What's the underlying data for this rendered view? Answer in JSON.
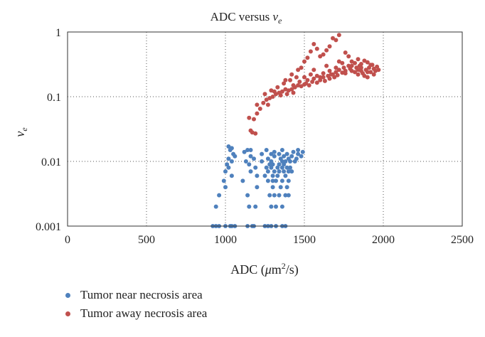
{
  "chart_data": {
    "type": "scatter",
    "title": "ADC versus ",
    "title_symbol": "v",
    "title_sub": "e",
    "xlabel_prefix": "ADC (",
    "xlabel_mu": "μ",
    "xlabel_m": "m",
    "xlabel_sup": "2",
    "xlabel_suffix": "/s)",
    "ylabel_symbol": "v",
    "ylabel_sub": "e",
    "xlim": [
      0,
      2500
    ],
    "ylim": [
      0.001,
      1
    ],
    "y_scale": "log",
    "x_ticks": [
      0,
      500,
      1000,
      1500,
      2000,
      2500
    ],
    "x_tick_labels": [
      "0",
      "500",
      "1000",
      "1500",
      "2000",
      "2500"
    ],
    "y_ticks": [
      0.001,
      0.01,
      0.1,
      1
    ],
    "y_tick_labels": [
      "0.001",
      "0.01",
      "0.1",
      "1"
    ],
    "grid": "dotted",
    "legend_position": "bottom-left",
    "series": [
      {
        "name": "Tumor near necrosis area",
        "color": "#4f81bd",
        "points": [
          [
            920,
            0.001
          ],
          [
            940,
            0.001
          ],
          [
            960,
            0.001
          ],
          [
            1000,
            0.001
          ],
          [
            1030,
            0.001
          ],
          [
            1040,
            0.001
          ],
          [
            1060,
            0.001
          ],
          [
            1140,
            0.001
          ],
          [
            1170,
            0.001
          ],
          [
            1180,
            0.001
          ],
          [
            1250,
            0.001
          ],
          [
            1270,
            0.001
          ],
          [
            1290,
            0.001
          ],
          [
            1320,
            0.001
          ],
          [
            1360,
            0.001
          ],
          [
            1380,
            0.001
          ],
          [
            940,
            0.002
          ],
          [
            1150,
            0.002
          ],
          [
            1190,
            0.002
          ],
          [
            1290,
            0.002
          ],
          [
            1320,
            0.002
          ],
          [
            1360,
            0.002
          ],
          [
            960,
            0.003
          ],
          [
            1140,
            0.003
          ],
          [
            1280,
            0.003
          ],
          [
            1310,
            0.003
          ],
          [
            1340,
            0.003
          ],
          [
            1380,
            0.003
          ],
          [
            1400,
            0.003
          ],
          [
            1000,
            0.004
          ],
          [
            1200,
            0.004
          ],
          [
            1300,
            0.004
          ],
          [
            1350,
            0.004
          ],
          [
            1390,
            0.004
          ],
          [
            990,
            0.005
          ],
          [
            1110,
            0.005
          ],
          [
            1270,
            0.005
          ],
          [
            1300,
            0.005
          ],
          [
            1320,
            0.005
          ],
          [
            1360,
            0.005
          ],
          [
            1400,
            0.005
          ],
          [
            1040,
            0.006
          ],
          [
            1200,
            0.006
          ],
          [
            1250,
            0.006
          ],
          [
            1300,
            0.006
          ],
          [
            1330,
            0.006
          ],
          [
            1380,
            0.006
          ],
          [
            1000,
            0.007
          ],
          [
            1160,
            0.007
          ],
          [
            1270,
            0.007
          ],
          [
            1310,
            0.007
          ],
          [
            1340,
            0.007
          ],
          [
            1370,
            0.007
          ],
          [
            1400,
            0.007
          ],
          [
            1420,
            0.007
          ],
          [
            1020,
            0.008
          ],
          [
            1190,
            0.008
          ],
          [
            1260,
            0.008
          ],
          [
            1290,
            0.008
          ],
          [
            1330,
            0.008
          ],
          [
            1360,
            0.008
          ],
          [
            1390,
            0.008
          ],
          [
            1410,
            0.008
          ],
          [
            1010,
            0.009
          ],
          [
            1150,
            0.009
          ],
          [
            1280,
            0.009
          ],
          [
            1300,
            0.009
          ],
          [
            1340,
            0.009
          ],
          [
            1370,
            0.009
          ],
          [
            1040,
            0.01
          ],
          [
            1130,
            0.01
          ],
          [
            1230,
            0.01
          ],
          [
            1290,
            0.01
          ],
          [
            1360,
            0.01
          ],
          [
            1380,
            0.01
          ],
          [
            1410,
            0.01
          ],
          [
            1440,
            0.01
          ],
          [
            1020,
            0.011
          ],
          [
            1180,
            0.011
          ],
          [
            1270,
            0.011
          ],
          [
            1350,
            0.011
          ],
          [
            1400,
            0.011
          ],
          [
            1450,
            0.011
          ],
          [
            1060,
            0.012
          ],
          [
            1160,
            0.012
          ],
          [
            1310,
            0.012
          ],
          [
            1370,
            0.012
          ],
          [
            1420,
            0.012
          ],
          [
            1480,
            0.012
          ],
          [
            1050,
            0.013
          ],
          [
            1230,
            0.013
          ],
          [
            1290,
            0.013
          ],
          [
            1340,
            0.013
          ],
          [
            1390,
            0.013
          ],
          [
            1460,
            0.013
          ],
          [
            1120,
            0.014
          ],
          [
            1310,
            0.014
          ],
          [
            1430,
            0.014
          ],
          [
            1490,
            0.014
          ],
          [
            1030,
            0.015
          ],
          [
            1140,
            0.015
          ],
          [
            1160,
            0.015
          ],
          [
            1260,
            0.015
          ],
          [
            1360,
            0.015
          ],
          [
            1460,
            0.015
          ],
          [
            1020,
            0.017
          ],
          [
            1040,
            0.016
          ]
        ]
      },
      {
        "name": "Tumor away necrosis area",
        "color": "#c0504d",
        "points": [
          [
            1150,
            0.047
          ],
          [
            1160,
            0.03
          ],
          [
            1170,
            0.028
          ],
          [
            1190,
            0.027
          ],
          [
            1180,
            0.045
          ],
          [
            1200,
            0.055
          ],
          [
            1200,
            0.075
          ],
          [
            1220,
            0.065
          ],
          [
            1240,
            0.08
          ],
          [
            1260,
            0.09
          ],
          [
            1270,
            0.075
          ],
          [
            1280,
            0.095
          ],
          [
            1300,
            0.1
          ],
          [
            1320,
            0.11
          ],
          [
            1340,
            0.115
          ],
          [
            1360,
            0.12
          ],
          [
            1380,
            0.13
          ],
          [
            1400,
            0.125
          ],
          [
            1420,
            0.13
          ],
          [
            1430,
            0.115
          ],
          [
            1440,
            0.14
          ],
          [
            1460,
            0.15
          ],
          [
            1480,
            0.145
          ],
          [
            1500,
            0.155
          ],
          [
            1510,
            0.16
          ],
          [
            1530,
            0.15
          ],
          [
            1550,
            0.17
          ],
          [
            1560,
            0.19
          ],
          [
            1580,
            0.165
          ],
          [
            1600,
            0.18
          ],
          [
            1620,
            0.2
          ],
          [
            1630,
            0.175
          ],
          [
            1650,
            0.21
          ],
          [
            1660,
            0.19
          ],
          [
            1670,
            0.22
          ],
          [
            1690,
            0.2
          ],
          [
            1700,
            0.24
          ],
          [
            1710,
            0.215
          ],
          [
            1720,
            0.26
          ],
          [
            1740,
            0.235
          ],
          [
            1750,
            0.28
          ],
          [
            1760,
            0.25
          ],
          [
            1780,
            0.3
          ],
          [
            1790,
            0.27
          ],
          [
            1800,
            0.25
          ],
          [
            1820,
            0.24
          ],
          [
            1830,
            0.28
          ],
          [
            1840,
            0.22
          ],
          [
            1850,
            0.3
          ],
          [
            1860,
            0.25
          ],
          [
            1870,
            0.23
          ],
          [
            1880,
            0.21
          ],
          [
            1890,
            0.26
          ],
          [
            1900,
            0.2
          ],
          [
            1910,
            0.28
          ],
          [
            1920,
            0.24
          ],
          [
            1930,
            0.31
          ],
          [
            1940,
            0.27
          ],
          [
            1950,
            0.25
          ],
          [
            1960,
            0.29
          ],
          [
            1970,
            0.26
          ],
          [
            1290,
            0.125
          ],
          [
            1330,
            0.14
          ],
          [
            1370,
            0.16
          ],
          [
            1410,
            0.18
          ],
          [
            1450,
            0.2
          ],
          [
            1480,
            0.28
          ],
          [
            1500,
            0.35
          ],
          [
            1520,
            0.4
          ],
          [
            1540,
            0.5
          ],
          [
            1560,
            0.65
          ],
          [
            1580,
            0.55
          ],
          [
            1600,
            0.42
          ],
          [
            1620,
            0.45
          ],
          [
            1640,
            0.52
          ],
          [
            1660,
            0.6
          ],
          [
            1680,
            0.8
          ],
          [
            1700,
            0.75
          ],
          [
            1720,
            0.9
          ],
          [
            1760,
            0.48
          ],
          [
            1780,
            0.42
          ],
          [
            1800,
            0.35
          ],
          [
            1820,
            0.33
          ],
          [
            1840,
            0.38
          ],
          [
            1860,
            0.32
          ],
          [
            1880,
            0.36
          ],
          [
            1900,
            0.34
          ],
          [
            1920,
            0.31
          ],
          [
            1380,
            0.18
          ],
          [
            1420,
            0.22
          ],
          [
            1460,
            0.26
          ],
          [
            1540,
            0.22
          ],
          [
            1580,
            0.21
          ],
          [
            1620,
            0.23
          ],
          [
            1660,
            0.25
          ],
          [
            1700,
            0.28
          ],
          [
            1740,
            0.33
          ],
          [
            1500,
            0.2
          ],
          [
            1560,
            0.26
          ],
          [
            1640,
            0.3
          ],
          [
            1720,
            0.35
          ],
          [
            1800,
            0.3
          ],
          [
            1860,
            0.28
          ],
          [
            1250,
            0.11
          ],
          [
            1310,
            0.12
          ],
          [
            1350,
            0.105
          ],
          [
            1390,
            0.11
          ],
          [
            1430,
            0.15
          ],
          [
            1470,
            0.17
          ],
          [
            1520,
            0.18
          ],
          [
            1600,
            0.2
          ],
          [
            1680,
            0.22
          ],
          [
            1760,
            0.23
          ],
          [
            1840,
            0.26
          ],
          [
            1900,
            0.24
          ],
          [
            1940,
            0.22
          ]
        ]
      }
    ]
  }
}
